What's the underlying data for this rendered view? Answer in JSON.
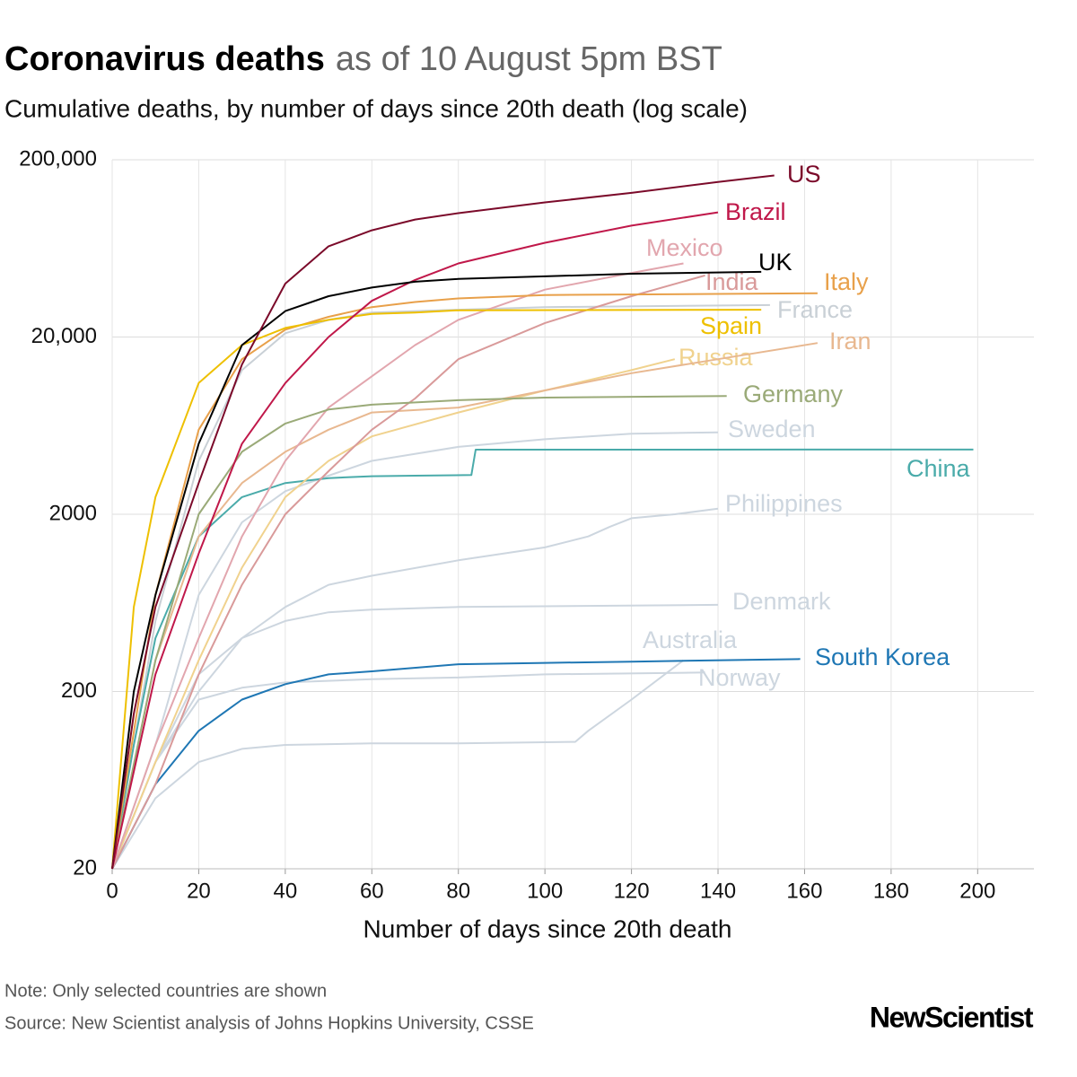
{
  "chart_data": {
    "type": "line",
    "title": "Coronavirus deaths",
    "title_suffix": "as of 10 August 5pm BST",
    "subtitle": "Cumulative deaths, by number of days since 20th death (log scale)",
    "x_label": "Number of days since 20th death",
    "note": "Note: Only selected countries are shown",
    "source": "Source: New Scientist analysis of Johns Hopkins University, CSSE",
    "brand": "NewScientist",
    "y_scale": "log",
    "grid": true,
    "xlim": [
      0,
      213
    ],
    "ylim": [
      20,
      200000
    ],
    "xticks": [
      0,
      20,
      40,
      60,
      80,
      100,
      120,
      140,
      160,
      180,
      200
    ],
    "yticks": [
      20,
      200,
      2000,
      {
        "value": 20000,
        "label": "20,000"
      },
      {
        "value": 200000,
        "label": "200,000"
      }
    ],
    "series": [
      {
        "name": "Australia",
        "color": "#cdd6df",
        "x": [
          0,
          10,
          20,
          30,
          40,
          60,
          80,
          107,
          110,
          120,
          132
        ],
        "values": [
          20,
          50,
          80,
          95,
          100,
          102,
          102,
          104,
          120,
          180,
          300
        ]
      },
      {
        "name": "Norway",
        "color": "#cdd6df",
        "x": [
          0,
          10,
          20,
          30,
          40,
          60,
          80,
          100,
          137
        ],
        "values": [
          20,
          80,
          180,
          210,
          225,
          235,
          240,
          250,
          256
        ]
      },
      {
        "name": "Denmark",
        "color": "#cdd6df",
        "x": [
          0,
          10,
          20,
          30,
          40,
          50,
          60,
          80,
          140
        ],
        "values": [
          20,
          80,
          250,
          400,
          500,
          560,
          580,
          600,
          617
        ]
      },
      {
        "name": "Philippines",
        "color": "#cdd6df",
        "x": [
          0,
          10,
          20,
          30,
          40,
          50,
          60,
          80,
          100,
          110,
          115,
          120,
          130,
          140
        ],
        "values": [
          20,
          80,
          200,
          400,
          600,
          800,
          900,
          1100,
          1300,
          1500,
          1700,
          1900,
          2000,
          2150
        ]
      },
      {
        "name": "Sweden",
        "color": "#cdd6df",
        "x": [
          0,
          10,
          20,
          30,
          40,
          50,
          60,
          80,
          100,
          120,
          140
        ],
        "values": [
          20,
          100,
          700,
          1800,
          2700,
          3300,
          4000,
          4800,
          5300,
          5700,
          5800
        ]
      },
      {
        "name": "France",
        "color": "#c9d0d6",
        "x": [
          0,
          10,
          20,
          30,
          40,
          50,
          60,
          80,
          100,
          152
        ],
        "values": [
          20,
          500,
          4000,
          13000,
          21000,
          25000,
          27500,
          28500,
          29500,
          30300
        ]
      },
      {
        "name": "China",
        "color": "#4aabaa",
        "x": [
          0,
          5,
          10,
          20,
          30,
          40,
          50,
          60,
          70,
          83,
          84,
          199
        ],
        "values": [
          20,
          100,
          400,
          1500,
          2500,
          3000,
          3200,
          3280,
          3300,
          3330,
          4630,
          4634
        ]
      },
      {
        "name": "South Korea",
        "color": "#1f77b4",
        "x": [
          0,
          10,
          20,
          30,
          40,
          50,
          60,
          80,
          100,
          120,
          159
        ],
        "values": [
          20,
          60,
          120,
          180,
          220,
          250,
          260,
          285,
          290,
          295,
          305
        ]
      },
      {
        "name": "Russia",
        "color": "#f0d28e",
        "x": [
          0,
          10,
          20,
          30,
          40,
          50,
          60,
          80,
          100,
          120,
          130
        ],
        "values": [
          20,
          80,
          300,
          1000,
          2500,
          4000,
          5500,
          7500,
          10000,
          13000,
          15000
        ]
      },
      {
        "name": "Iran",
        "color": "#e8b890",
        "x": [
          0,
          10,
          20,
          30,
          40,
          50,
          60,
          80,
          100,
          120,
          140,
          163
        ],
        "values": [
          20,
          300,
          1500,
          3000,
          4500,
          6000,
          7500,
          8000,
          10000,
          12500,
          15000,
          18500
        ]
      },
      {
        "name": "India",
        "color": "#d99a9a",
        "x": [
          0,
          10,
          20,
          30,
          40,
          50,
          60,
          70,
          80,
          100,
          120,
          137
        ],
        "values": [
          20,
          60,
          250,
          800,
          2000,
          3500,
          6000,
          9000,
          15000,
          24000,
          34000,
          44500
        ]
      },
      {
        "name": "Mexico",
        "color": "#e2a6ae",
        "x": [
          0,
          10,
          20,
          30,
          40,
          50,
          60,
          70,
          80,
          100,
          120,
          132
        ],
        "values": [
          20,
          100,
          400,
          1500,
          4000,
          8000,
          12000,
          18000,
          25000,
          37000,
          46000,
          52000
        ]
      },
      {
        "name": "Germany",
        "color": "#9aaa78",
        "x": [
          0,
          10,
          20,
          30,
          40,
          50,
          60,
          80,
          100,
          142
        ],
        "values": [
          20,
          300,
          2000,
          4500,
          6500,
          7800,
          8300,
          8800,
          9100,
          9300
        ]
      },
      {
        "name": "Italy",
        "color": "#e8a04a",
        "x": [
          0,
          10,
          20,
          30,
          40,
          50,
          60,
          70,
          80,
          100,
          163
        ],
        "values": [
          20,
          700,
          6000,
          15000,
          22000,
          26000,
          29500,
          31500,
          33000,
          34500,
          35300
        ]
      },
      {
        "name": "Spain",
        "color": "#eec000",
        "x": [
          0,
          5,
          10,
          20,
          30,
          40,
          50,
          60,
          70,
          80,
          150
        ],
        "values": [
          20,
          600,
          2500,
          11000,
          18000,
          22500,
          25000,
          27000,
          27500,
          28300,
          28500
        ]
      },
      {
        "name": "Brazil",
        "color": "#c0184a",
        "x": [
          0,
          10,
          20,
          30,
          40,
          50,
          60,
          70,
          80,
          100,
          120,
          140
        ],
        "values": [
          20,
          250,
          1200,
          5000,
          11000,
          20000,
          32000,
          42000,
          52000,
          68000,
          85000,
          101000
        ]
      },
      {
        "name": "UK",
        "color": "#000000",
        "x": [
          0,
          5,
          10,
          20,
          30,
          40,
          50,
          60,
          70,
          80,
          100,
          120,
          150
        ],
        "values": [
          20,
          200,
          700,
          5000,
          18000,
          28000,
          34000,
          38000,
          41000,
          42500,
          44000,
          45500,
          46600
        ]
      },
      {
        "name": "US",
        "color": "#7b0a2a",
        "x": [
          0,
          5,
          10,
          20,
          30,
          40,
          50,
          60,
          70,
          80,
          100,
          120,
          140,
          153
        ],
        "values": [
          20,
          150,
          600,
          3000,
          14000,
          40000,
          65000,
          80000,
          92000,
          100000,
          115000,
          130000,
          150000,
          163000
        ]
      }
    ]
  }
}
